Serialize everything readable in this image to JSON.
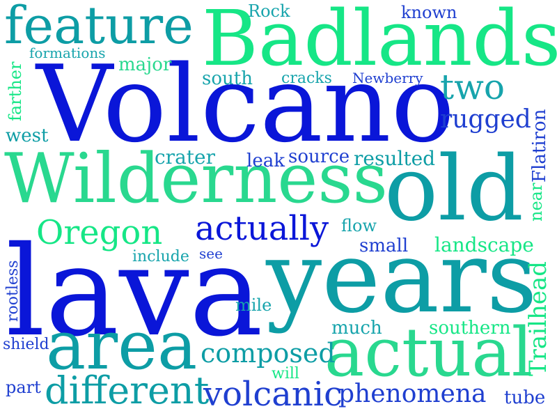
{
  "colors": {
    "blue": "#0a16d8",
    "blue2": "#1f3fd0",
    "teal": "#0d9da5",
    "teal2": "#17a4ac",
    "green": "#16e686",
    "green2": "#29d88f",
    "turq": "#1fc4a0"
  },
  "words": [
    {
      "text": "Volcano",
      "color": "blue"
    },
    {
      "text": "lava",
      "color": "blue"
    },
    {
      "text": "years",
      "color": "teal"
    },
    {
      "text": "Badlands",
      "color": "green"
    },
    {
      "text": "Wilderness",
      "color": "green2"
    },
    {
      "text": "old",
      "color": "teal"
    },
    {
      "text": "feature",
      "color": "teal"
    },
    {
      "text": "actual",
      "color": "green2"
    },
    {
      "text": "area",
      "color": "teal"
    },
    {
      "text": "Oregon",
      "color": "green"
    },
    {
      "text": "actually",
      "color": "blue"
    },
    {
      "text": "two",
      "color": "teal2"
    },
    {
      "text": "different",
      "color": "teal"
    },
    {
      "text": "volcanic",
      "color": "blue2"
    },
    {
      "text": "composed",
      "color": "teal"
    },
    {
      "text": "phenomena",
      "color": "blue2"
    },
    {
      "text": "rugged",
      "color": "blue2"
    },
    {
      "text": "Trailhead",
      "color": "green"
    },
    {
      "text": "Rock",
      "color": "teal2"
    },
    {
      "text": "known",
      "color": "blue2"
    },
    {
      "text": "formations",
      "color": "teal2"
    },
    {
      "text": "major",
      "color": "green2"
    },
    {
      "text": "south",
      "color": "teal2"
    },
    {
      "text": "cracks",
      "color": "teal2"
    },
    {
      "text": "Newberry",
      "color": "blue2"
    },
    {
      "text": "farther",
      "color": "green"
    },
    {
      "text": "west",
      "color": "teal"
    },
    {
      "text": "crater",
      "color": "teal2"
    },
    {
      "text": "leak",
      "color": "blue2"
    },
    {
      "text": "source",
      "color": "blue2"
    },
    {
      "text": "resulted",
      "color": "teal"
    },
    {
      "text": "Flatiron",
      "color": "blue2"
    },
    {
      "text": "near",
      "color": "green"
    },
    {
      "text": "flow",
      "color": "teal2"
    },
    {
      "text": "small",
      "color": "blue2"
    },
    {
      "text": "landscape",
      "color": "green"
    },
    {
      "text": "include",
      "color": "teal2"
    },
    {
      "text": "see",
      "color": "blue2"
    },
    {
      "text": "rootless",
      "color": "blue2"
    },
    {
      "text": "mile",
      "color": "teal2"
    },
    {
      "text": "much",
      "color": "teal2"
    },
    {
      "text": "southern",
      "color": "green"
    },
    {
      "text": "shield",
      "color": "blue2"
    },
    {
      "text": "will",
      "color": "green"
    },
    {
      "text": "part",
      "color": "blue2"
    },
    {
      "text": "tube",
      "color": "blue2"
    }
  ]
}
